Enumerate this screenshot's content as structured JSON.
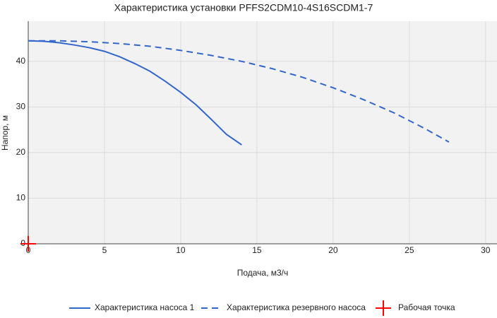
{
  "chart_data": {
    "type": "line",
    "title": "Характеристика установки PFFS2CDM10-4S16SCDM1-7",
    "x_label": "Подача, м3/ч",
    "y_label": "Напор, м",
    "xlim": [
      0,
      30.75
    ],
    "ylim": [
      0,
      48.8
    ],
    "xticks": [
      0,
      5,
      10,
      15,
      20,
      25,
      30
    ],
    "yticks": [
      0,
      10,
      20,
      30,
      40
    ],
    "grid": true,
    "legend": "bottom",
    "series": [
      {
        "name": "Характеристика насоса 1",
        "color": "#3366cc",
        "style": "solid",
        "x": [
          0,
          1,
          2,
          3,
          4,
          5,
          6,
          7,
          8,
          9,
          10,
          11,
          12,
          13,
          14
        ],
        "values": [
          44.5,
          44.4,
          44.1,
          43.6,
          43.0,
          42.2,
          41.0,
          39.5,
          37.8,
          35.6,
          33.2,
          30.5,
          27.3,
          24.0,
          21.7
        ]
      },
      {
        "name": "Характеристика резервного насоса",
        "color": "#3366cc",
        "style": "dash",
        "x": [
          0,
          2,
          4,
          6,
          8,
          10,
          12,
          14,
          16,
          18,
          20,
          22,
          24,
          26,
          27.6
        ],
        "values": [
          44.5,
          44.5,
          44.3,
          43.9,
          43.3,
          42.4,
          41.3,
          40.0,
          38.4,
          36.5,
          34.2,
          31.6,
          28.7,
          25.3,
          22.3
        ]
      },
      {
        "name": "Рабочая точка",
        "color": "#ff0000",
        "style": "cross",
        "x": [
          0
        ],
        "values": [
          0
        ]
      }
    ]
  }
}
